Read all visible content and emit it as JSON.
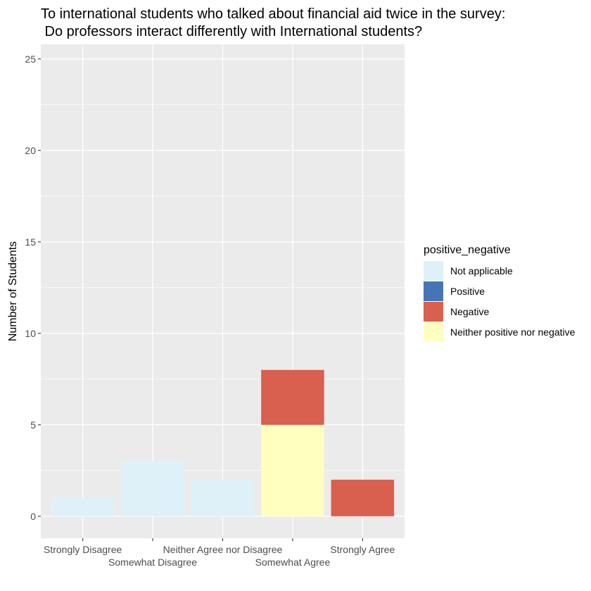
{
  "chart_data": {
    "type": "bar",
    "stacked": true,
    "title_lines": [
      "To international students who talked about financial aid twice in the survey:",
      " Do professors interact differently with International students?"
    ],
    "xlabel": "",
    "ylabel": "Number of Students",
    "ylim": [
      -1.2,
      25.8
    ],
    "yticks": [
      0,
      5,
      10,
      15,
      20,
      25
    ],
    "categories": [
      "Strongly Disagree",
      "Somewhat Disagree",
      "Neither Agree nor Disagree",
      "Somewhat Agree",
      "Strongly Agree"
    ],
    "series": [
      {
        "name": "Not applicable",
        "color": "#dff1f8",
        "values": [
          1,
          3,
          2,
          0,
          0
        ]
      },
      {
        "name": "Positive",
        "color": "#4575b4",
        "values": [
          0,
          0,
          0,
          0,
          0
        ]
      },
      {
        "name": "Negative",
        "color": "#d95f4e",
        "values": [
          0,
          0,
          0,
          3,
          2
        ]
      },
      {
        "name": "Neither positive nor negative",
        "color": "#ffffbf",
        "values": [
          0,
          0,
          0,
          5,
          0
        ]
      }
    ],
    "stack_order_bottom_to_top": [
      "Neither positive nor negative",
      "Negative",
      "Positive",
      "Not applicable"
    ],
    "legend": {
      "title": "positive_negative",
      "position": "right"
    },
    "grid": true,
    "panel_background": "#ebebeb"
  }
}
